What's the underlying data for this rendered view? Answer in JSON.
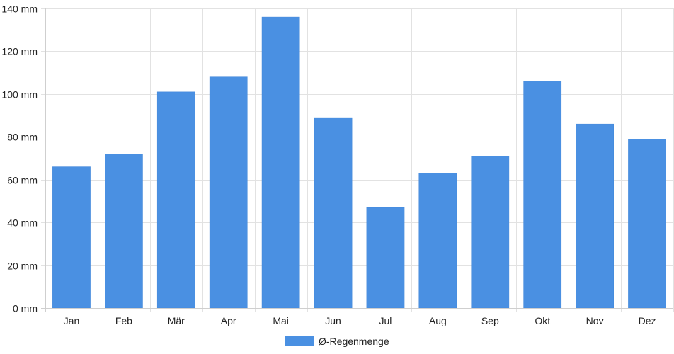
{
  "chart_data": {
    "type": "bar",
    "categories": [
      "Jan",
      "Feb",
      "Mär",
      "Apr",
      "Mai",
      "Jun",
      "Jul",
      "Aug",
      "Sep",
      "Okt",
      "Nov",
      "Dez"
    ],
    "series": [
      {
        "name": "Ø-Regenmenge",
        "color": "#4a90e2",
        "values": [
          66,
          72,
          101,
          108,
          136,
          89,
          47,
          63,
          71,
          106,
          86,
          79
        ]
      }
    ],
    "y_ticks": [
      "0 mm",
      "20 mm",
      "40 mm",
      "60 mm",
      "80 mm",
      "100 mm",
      "120 mm",
      "140 mm"
    ],
    "unit": "mm",
    "ylim": [
      0,
      140
    ],
    "grid": true,
    "legend_position": "bottom"
  }
}
